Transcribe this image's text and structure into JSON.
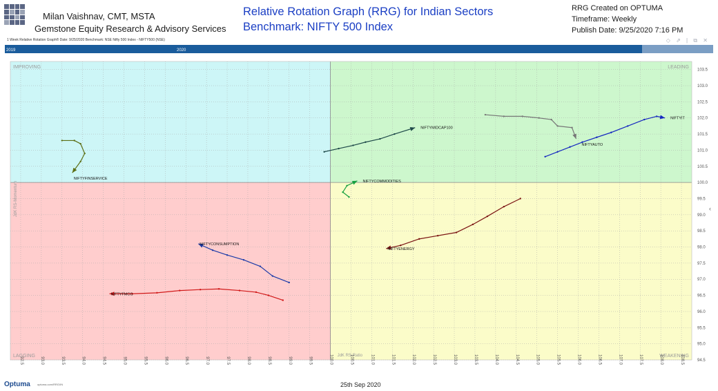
{
  "header": {
    "author": "Milan Vaishnav, CMT, MSTA",
    "firm": "Gemstone Equity Research & Advisory Services",
    "title": "Relative Rotation Graph (RRG) for Indian Sectors",
    "subtitle": "Benchmark: NIFTY 500 Index",
    "created": "RRG Created on OPTUMA",
    "timeframe": "Timeframe: Weekly",
    "publish": "Publish Date: 9/25/2020 7:16 PM",
    "chart_caption": "1 Week Relative Rotation Graph®   Date: 9/25/2020 Benchmark: NSE Nifty 500 Index - NIFTY500 (NSE)",
    "window_icons": "◇ ⇗ | ⧉ ✕"
  },
  "timeline": {
    "label_left": "2019",
    "label_mid": "2020"
  },
  "footer": {
    "logo": "Optuma",
    "url": "optuma.com/RRG/IN",
    "date": "25th Sep 2020"
  },
  "colors": {
    "improving": "#cdf6f7",
    "leading": "#cdf7cd",
    "lagging": "#ffcdcd",
    "weakening": "#fbfcc9",
    "grid": "#a9a9a9",
    "timeline": "#1a5c9c"
  },
  "chart_data": {
    "type": "scatter",
    "title": "Relative Rotation Graph (RRG) for Indian Sectors",
    "xlabel": "JdK RS-Ratio",
    "ylabel": "JdK RS-Momentum",
    "xlim": [
      92.25,
      108.75
    ],
    "ylim": [
      94.5,
      103.75
    ],
    "x_ticks": [
      92.5,
      93.0,
      93.5,
      94.0,
      94.5,
      95.0,
      95.5,
      96.0,
      96.5,
      97.0,
      97.5,
      98.0,
      98.5,
      99.0,
      99.5,
      100.0,
      100.5,
      101.0,
      101.5,
      102.0,
      102.5,
      103.0,
      103.5,
      104.0,
      104.5,
      105.0,
      105.5,
      106.0,
      106.5,
      107.0,
      107.5,
      108.0,
      108.5
    ],
    "y_ticks": [
      94.5,
      95.0,
      95.5,
      96.0,
      96.5,
      97.0,
      97.5,
      98.0,
      98.5,
      99.0,
      99.5,
      100.0,
      100.5,
      101.0,
      101.5,
      102.0,
      102.5,
      103.0,
      103.5
    ],
    "tick_decimals": 1,
    "center": [
      100,
      100
    ],
    "grid": true,
    "quadrants": {
      "improving": "IMPROVING",
      "leading": "LEADING",
      "lagging": "LAGGING",
      "weakening": "WEAKENING"
    },
    "series": [
      {
        "name": "NIFTYMIDCAP100",
        "color": "#1f4a4a",
        "points": [
          [
            99.85,
            100.95
          ],
          [
            100.2,
            101.05
          ],
          [
            100.55,
            101.15
          ],
          [
            100.85,
            101.25
          ],
          [
            101.2,
            101.35
          ],
          [
            101.55,
            101.5
          ],
          [
            102.05,
            101.7
          ]
        ]
      },
      {
        "name": "NIFTYIT",
        "color": "#1628c0",
        "points": [
          [
            105.2,
            100.8
          ],
          [
            105.5,
            100.95
          ],
          [
            105.8,
            101.1
          ],
          [
            106.1,
            101.25
          ],
          [
            106.45,
            101.4
          ],
          [
            106.8,
            101.55
          ],
          [
            107.2,
            101.75
          ],
          [
            107.6,
            101.95
          ],
          [
            107.9,
            102.05
          ],
          [
            108.1,
            102.0
          ]
        ]
      },
      {
        "name": "NIFTYAUTO",
        "color": "#777777",
        "points": [
          [
            103.75,
            102.1
          ],
          [
            104.2,
            102.05
          ],
          [
            104.65,
            102.05
          ],
          [
            105.05,
            102.0
          ],
          [
            105.35,
            101.95
          ],
          [
            105.5,
            101.75
          ],
          [
            105.85,
            101.7
          ],
          [
            105.95,
            101.35
          ]
        ]
      },
      {
        "name": "NIFTYFINSERVICE",
        "color": "#5c6e14",
        "points": [
          [
            93.5,
            101.3
          ],
          [
            93.8,
            101.3
          ],
          [
            93.95,
            101.2
          ],
          [
            94.05,
            100.9
          ],
          [
            93.95,
            100.65
          ],
          [
            93.75,
            100.3
          ]
        ]
      },
      {
        "name": "NIFTYCOMMODITIES",
        "color": "#16a040",
        "points": [
          [
            100.45,
            99.55
          ],
          [
            100.3,
            99.7
          ],
          [
            100.4,
            99.9
          ],
          [
            100.65,
            100.05
          ]
        ]
      },
      {
        "name": "NIFTYENERGY",
        "color": "#7a1212",
        "points": [
          [
            104.6,
            99.5
          ],
          [
            104.2,
            99.25
          ],
          [
            103.8,
            98.95
          ],
          [
            103.45,
            98.7
          ],
          [
            103.05,
            98.45
          ],
          [
            102.6,
            98.35
          ],
          [
            102.15,
            98.25
          ],
          [
            101.7,
            98.05
          ],
          [
            101.35,
            97.95
          ]
        ]
      },
      {
        "name": "NIFTYCONSUMPTION",
        "color": "#1a3aa8",
        "points": [
          [
            99.0,
            96.9
          ],
          [
            98.6,
            97.1
          ],
          [
            98.3,
            97.4
          ],
          [
            97.9,
            97.6
          ],
          [
            97.5,
            97.75
          ],
          [
            97.15,
            97.9
          ],
          [
            96.8,
            98.1
          ]
        ]
      },
      {
        "name": "NIFTYFMCG",
        "color": "#d01818",
        "points": [
          [
            98.85,
            96.35
          ],
          [
            98.5,
            96.5
          ],
          [
            98.2,
            96.6
          ],
          [
            97.8,
            96.65
          ],
          [
            97.3,
            96.7
          ],
          [
            96.85,
            96.68
          ],
          [
            96.35,
            96.65
          ],
          [
            95.8,
            96.58
          ],
          [
            95.2,
            96.55
          ],
          [
            94.65,
            96.55
          ]
        ]
      }
    ]
  }
}
